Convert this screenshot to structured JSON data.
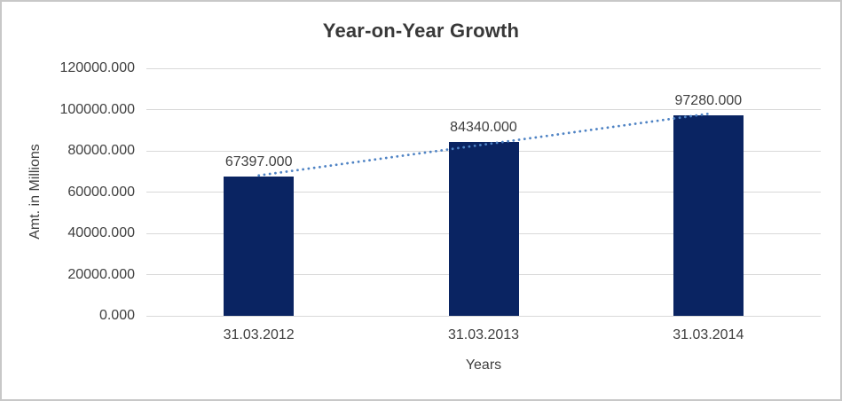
{
  "colors": {
    "bar": "#0a2462",
    "trendline": "#4f83c4",
    "gridline": "#d9d9d9",
    "text": "#3f3f3f",
    "title_text": "#383838",
    "frame_border": "#c8c8c8",
    "background": "#ffffff"
  },
  "chart_data": {
    "type": "bar",
    "title": "Year-on-Year Growth",
    "categories": [
      "31.03.2012",
      "31.03.2013",
      "31.03.2014"
    ],
    "values": [
      67397,
      84340,
      97280
    ],
    "data_labels": [
      "67397.000",
      "84340.000",
      "97280.000"
    ],
    "xlabel": "Years",
    "ylabel": "Amt. in Millions",
    "ylim": [
      0,
      120000
    ],
    "ytick_step": 20000,
    "ytick_labels": [
      "0.000",
      "20000.000",
      "40000.000",
      "60000.000",
      "80000.000",
      "100000.000",
      "120000.000"
    ],
    "grid": true,
    "legend": "none",
    "trendline": {
      "type": "linear",
      "style": "dotted"
    }
  }
}
